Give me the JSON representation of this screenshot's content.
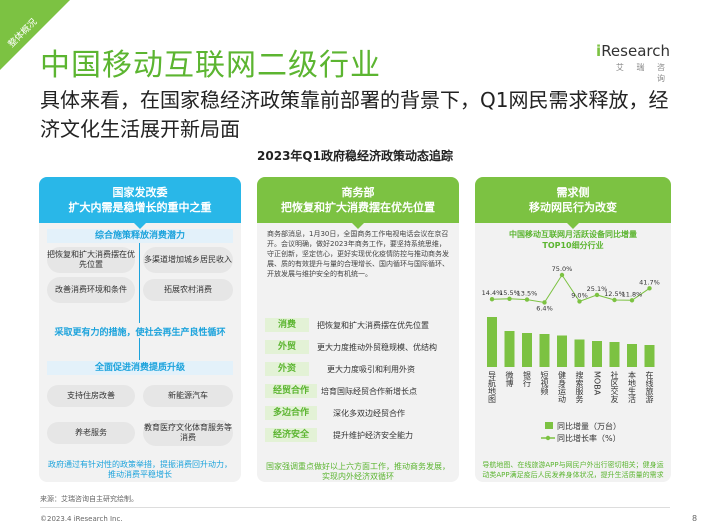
{
  "corner_tag": "整体概况",
  "title": "中国移动互联网二级行业",
  "logo": {
    "brand_i": "i",
    "brand_rest": "Research",
    "sub": "艾 瑞 咨 询"
  },
  "subtitle": "具体来看，在国家稳经济政策靠前部署的背景下，Q1网民需求释放，经济文化生活展开新局面",
  "section_title": "2023年Q1政府稳经济政策动态追踪",
  "card1": {
    "head": [
      "国家发改委",
      "扩大内需是稳增长的重中之重"
    ],
    "sub1": "综合施策释放消费潜力",
    "pills1": [
      "把恢复和扩大消费摆在优先位置",
      "多渠道增加城乡居民收入",
      "改善消费环境和条件",
      "拓展农村消费"
    ],
    "mid": "采取更有力的措施，使社会再生产良性循环",
    "sub2": "全面促进消费提质升级",
    "pills2": [
      "支持住房改善",
      "新能源汽车",
      "养老服务",
      "教育医疗文化体育服务等消费"
    ],
    "foot": "政府通过有针对性的政策举措，提振消费回升动力，推动消费平稳增长"
  },
  "card2": {
    "head": [
      "商务部",
      "把恢复和扩大消费摆在优先位置"
    ],
    "para": "商务部消息，1月30日，全国商务工作电视电话会议在京召开。会议明确，做好2023年商务工作，要坚持系统思维，守正创新，坚定信心，更好实现优化疫情防控与推动商务发展、质的有效提升与量的合理增长、国内循环与国际循环、开放发展与维护安全的有机统一。",
    "rows": [
      {
        "tag": "消费",
        "text": "把恢复和扩大消费摆在优先位置"
      },
      {
        "tag": "外贸",
        "text": "更大力度推动外贸稳规模、优结构"
      },
      {
        "tag": "外资",
        "text": "更大力度吸引和利用外资"
      },
      {
        "tag": "经贸合作",
        "text": "培育国际经贸合作新增长点"
      },
      {
        "tag": "多边合作",
        "text": "深化多双边经贸合作"
      },
      {
        "tag": "经济安全",
        "text": "提升维护经济安全能力"
      }
    ],
    "foot": "国家强调重点做好以上六方面工作，推动商务发展，实现内外经济双循环"
  },
  "card3": {
    "head": [
      "需求侧",
      "移动网民行为改变"
    ],
    "chart_title": [
      "中国移动互联网月活跃设备同比增量",
      "TOP10细分行业"
    ],
    "legend_bar": "同比增量（万台）",
    "legend_line": "同比增长率（%）",
    "foot": "导航地图、在线旅游APP与网民户外出行密切相关；健身运动类APP满足疫后人民发养身体状况，提升生活质量的需求"
  },
  "chart_data": {
    "type": "bar",
    "categories": [
      "导航地图",
      "微博",
      "银行",
      "短视频",
      "健身运动",
      "搜索服务",
      "MOBA",
      "社区交友",
      "本地生活",
      "在线旅游"
    ],
    "series": [
      {
        "name": "同比增量（万台）",
        "type": "bar",
        "values": [
          100,
          72,
          68,
          66,
          63,
          55,
          52,
          50,
          46,
          44
        ]
      },
      {
        "name": "同比增长率（%）",
        "type": "line",
        "values": [
          14.4,
          15.5,
          13.5,
          6.4,
          75.0,
          9.0,
          25.1,
          12.5,
          11.8,
          41.7
        ],
        "labels": [
          "14.4%",
          "15.5%",
          "13.5%",
          "6.4%",
          "75.0%",
          "9.0%",
          "25.1%",
          "12.5%",
          "11.8%",
          "41.7%"
        ]
      }
    ],
    "colors": {
      "bar": "#7cc242",
      "line": "#7cc242"
    }
  },
  "source": "来源：艾瑞咨询自主研究绘制。",
  "copyright": "©2023.4 iResearch Inc.",
  "page": "8"
}
